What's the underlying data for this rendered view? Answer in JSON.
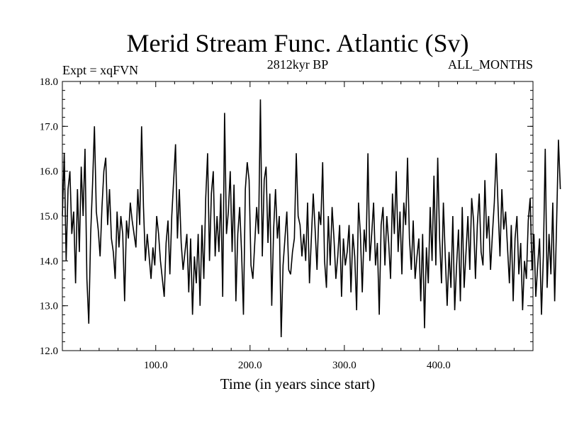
{
  "chart_data": {
    "type": "line",
    "title": "Merid Stream Func. Atlantic (Sv)",
    "subtitle_left": "Expt = xqFVN",
    "subtitle_center": "2812kyr BP",
    "subtitle_right": "ALL_MONTHS",
    "xlabel": "Time (in years since start)",
    "ylabel": "",
    "xlim": [
      1,
      500
    ],
    "ylim": [
      12.0,
      18.0
    ],
    "xticks": [
      100,
      200,
      300,
      400
    ],
    "xtick_labels": [
      "100.0",
      "200.0",
      "300.0",
      "400.0"
    ],
    "yticks": [
      12,
      13,
      14,
      15,
      16,
      17,
      18
    ],
    "ytick_labels": [
      "12.0",
      "13.0",
      "14.0",
      "15.0",
      "16.0",
      "17.0",
      "18.0"
    ],
    "series": [
      {
        "name": "Merid Stream Func. Atlantic",
        "x_start": 1,
        "x_step": 2,
        "values": [
          15.0,
          16.4,
          14.0,
          15.6,
          16.0,
          14.6,
          15.1,
          13.5,
          15.6,
          14.2,
          16.1,
          15.0,
          16.5,
          13.6,
          12.6,
          14.6,
          15.7,
          17.0,
          15.1,
          14.7,
          14.1,
          15.2,
          16.0,
          16.3,
          14.8,
          15.6,
          14.5,
          14.2,
          13.6,
          15.1,
          14.3,
          15.0,
          14.6,
          13.1,
          14.9,
          14.5,
          15.3,
          14.9,
          14.6,
          14.3,
          15.6,
          14.8,
          17.0,
          15.2,
          14.0,
          14.6,
          14.1,
          13.6,
          14.3,
          13.9,
          15.0,
          14.6,
          14.0,
          13.6,
          13.2,
          14.4,
          14.9,
          13.7,
          15.0,
          15.8,
          16.6,
          14.5,
          15.6,
          14.4,
          13.8,
          14.2,
          14.6,
          13.3,
          14.5,
          12.8,
          14.1,
          13.5,
          14.6,
          13.0,
          14.8,
          13.6,
          15.4,
          16.4,
          14.0,
          15.5,
          16.0,
          14.1,
          15.0,
          14.2,
          15.5,
          13.2,
          17.3,
          14.6,
          15.1,
          16.0,
          14.2,
          15.7,
          13.1,
          14.6,
          15.2,
          14.2,
          12.8,
          15.6,
          16.2,
          15.8,
          13.9,
          13.6,
          14.4,
          15.2,
          14.6,
          17.6,
          14.1,
          15.8,
          16.1,
          14.4,
          15.5,
          13.0,
          14.7,
          15.6,
          14.5,
          15.0,
          12.3,
          13.9,
          14.5,
          15.1,
          13.8,
          13.7,
          14.2,
          14.5,
          16.4,
          15.0,
          14.8,
          14.1,
          14.6,
          14.0,
          15.3,
          13.5,
          14.5,
          15.5,
          14.7,
          13.8,
          15.1,
          14.8,
          16.2,
          14.0,
          13.4,
          15.0,
          13.9,
          15.2,
          14.5,
          13.6,
          14.1,
          14.8,
          13.2,
          14.5,
          13.9,
          14.2,
          14.8,
          13.3,
          14.6,
          14.1,
          12.9,
          15.3,
          14.6,
          13.3,
          14.7,
          14.2,
          16.4,
          14.0,
          14.6,
          15.3,
          13.9,
          14.4,
          12.8,
          14.8,
          15.2,
          13.9,
          15.0,
          14.4,
          13.6,
          15.5,
          14.6,
          16.0,
          14.2,
          15.1,
          13.7,
          15.3,
          14.8,
          16.3,
          14.5,
          13.8,
          14.9,
          13.6,
          14.1,
          14.5,
          13.1,
          14.6,
          12.5,
          14.3,
          13.5,
          15.2,
          14.0,
          15.9,
          13.9,
          16.3,
          14.5,
          13.5,
          15.3,
          14.1,
          13.0,
          14.2,
          13.4,
          15.0,
          12.9,
          13.9,
          14.7,
          13.1,
          15.2,
          13.4,
          14.2,
          15.0,
          13.8,
          15.4,
          14.9,
          13.6,
          14.8,
          15.5,
          14.2,
          13.9,
          15.8,
          14.5,
          15.0,
          13.8,
          14.6,
          15.3,
          16.4,
          15.2,
          14.1,
          15.6,
          14.7,
          15.1,
          14.3,
          13.5,
          14.8,
          13.1,
          14.5,
          15.0,
          13.7,
          14.4,
          12.9,
          14.0,
          13.6,
          14.9,
          15.4,
          13.8,
          14.6,
          13.2,
          13.9,
          14.5,
          12.8,
          14.1,
          16.5,
          13.4,
          14.6,
          13.7,
          15.3,
          13.1,
          14.8,
          16.7,
          15.6
        ]
      }
    ]
  }
}
